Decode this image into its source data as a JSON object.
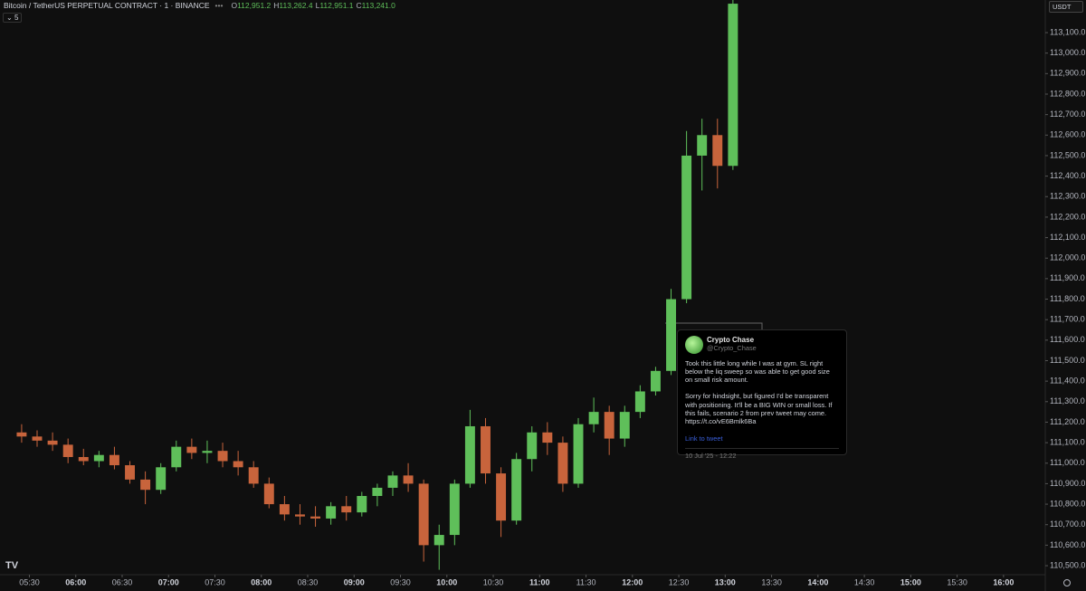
{
  "header": {
    "symbol": "Bitcoin / TetherUS PERPETUAL CONTRACT · 1 · BINANCE",
    "ohlc": [
      {
        "key": "O",
        "value": {
          "value": 112951.2,
          "label": "112,951.2"
        }
      },
      {
        "key": "H",
        "value": {
          "value": 113262.4,
          "label": "113,262.4"
        }
      },
      {
        "key": "L",
        "value": {
          "value": 112951.1,
          "label": "112,951.1"
        }
      },
      {
        "key": "C",
        "value": {
          "value": 113241.0,
          "label": "113,241.0"
        }
      }
    ],
    "indicator_count": 5,
    "currency": "USDT"
  },
  "tweet": {
    "name": "Crypto Chase",
    "handle": "@Crypto_Chase",
    "paragraphs": [
      "Took this little long while I was at gym. SL right below the liq sweep so was able to get good size on small risk amount.",
      "Sorry for hindsight, but figured I'd be transparent with positioning. It'll be a BIG WIN or small loss. If this fails, scenario 2 from prev tweet may come. https://t.co/vE6Bmlk6Ba"
    ],
    "link": "Link to tweet",
    "date": "10 Jul '25 - 12:22"
  },
  "chart_data": {
    "type": "candlestick",
    "up_color": "#5fbf5a",
    "down_color": "#c8643c",
    "x": [
      "05:20",
      "05:30",
      "05:40",
      "05:50",
      "06:00",
      "06:10",
      "06:20",
      "06:30",
      "06:40",
      "06:50",
      "07:00",
      "07:10",
      "07:20",
      "07:30",
      "07:40",
      "07:50",
      "08:00",
      "08:10",
      "08:20",
      "08:30",
      "08:40",
      "08:50",
      "09:00",
      "09:10",
      "09:20",
      "09:30",
      "09:40",
      "09:50",
      "10:00",
      "10:10",
      "10:20",
      "10:30",
      "10:40",
      "10:50",
      "11:00",
      "11:10",
      "11:20",
      "11:30",
      "11:40",
      "11:50",
      "12:00",
      "12:10",
      "12:20",
      "12:30",
      "12:40",
      "12:50",
      "13:00"
    ],
    "open": [
      111150,
      111130,
      111110,
      111090,
      111030,
      111010,
      111040,
      110990,
      110920,
      110870,
      110980,
      111080,
      111050,
      111060,
      111010,
      110980,
      110900,
      110800,
      110750,
      110740,
      110730,
      110790,
      110760,
      110840,
      110880,
      110940,
      110900,
      110600,
      110650,
      110900,
      111180,
      110950,
      110720,
      111020,
      111150,
      111100,
      110900,
      111190,
      111250,
      111120,
      111250,
      111350,
      111450,
      111800,
      112500,
      112600,
      112450
    ],
    "high": [
      111190,
      111160,
      111150,
      111120,
      111070,
      111060,
      111080,
      111010,
      110960,
      111000,
      111110,
      111120,
      111110,
      111100,
      111060,
      111010,
      110930,
      110840,
      110800,
      110790,
      110810,
      110840,
      110860,
      110900,
      110960,
      111000,
      110920,
      110700,
      110920,
      111260,
      111220,
      110980,
      111050,
      111180,
      111200,
      111130,
      111220,
      111320,
      111280,
      111280,
      111380,
      111470,
      111850,
      112620,
      112680,
      112680,
      113262
    ],
    "low": [
      111100,
      111080,
      111060,
      111000,
      110990,
      110980,
      110970,
      110900,
      110800,
      110850,
      110960,
      111020,
      111000,
      110980,
      110940,
      110880,
      110780,
      110720,
      110700,
      110690,
      110700,
      110720,
      110740,
      110790,
      110840,
      110860,
      110520,
      110480,
      110600,
      110880,
      110900,
      110640,
      110700,
      110960,
      111040,
      110860,
      110880,
      111150,
      111040,
      111080,
      111220,
      111330,
      111430,
      111780,
      112330,
      112340,
      112430
    ],
    "close": [
      111130,
      111110,
      111090,
      111030,
      111010,
      111040,
      110990,
      110920,
      110870,
      110980,
      111080,
      111050,
      111060,
      111010,
      110980,
      110900,
      110800,
      110750,
      110740,
      110730,
      110790,
      110760,
      110840,
      110880,
      110940,
      110900,
      110600,
      110650,
      110900,
      111180,
      110950,
      110720,
      111020,
      111150,
      111100,
      110900,
      111190,
      111250,
      111120,
      111250,
      111350,
      111450,
      111800,
      112500,
      112600,
      112450,
      113241
    ],
    "xlim": [
      "05:11",
      "16:27"
    ],
    "xticks": [
      "05:30",
      "06:00",
      "06:30",
      "07:00",
      "07:30",
      "08:00",
      "08:30",
      "09:00",
      "09:30",
      "10:00",
      "10:30",
      "11:00",
      "11:30",
      "12:00",
      "12:30",
      "13:00",
      "13:30",
      "14:00",
      "14:30",
      "15:00",
      "15:30",
      "16:00"
    ],
    "ylim": [
      110456,
      113259
    ],
    "yticks": [
      {
        "value": 110500,
        "label": "110,500.0"
      },
      {
        "value": 110600,
        "label": "110,600.0"
      },
      {
        "value": 110700,
        "label": "110,700.0"
      },
      {
        "value": 110800,
        "label": "110,800.0"
      },
      {
        "value": 110900,
        "label": "110,900.0"
      },
      {
        "value": 111000,
        "label": "111,000.0"
      },
      {
        "value": 111100,
        "label": "111,100.0"
      },
      {
        "value": 111200,
        "label": "111,200.0"
      },
      {
        "value": 111300,
        "label": "111,300.0"
      },
      {
        "value": 111400,
        "label": "111,400.0"
      },
      {
        "value": 111500,
        "label": "111,500.0"
      },
      {
        "value": 111600,
        "label": "111,600.0"
      },
      {
        "value": 111700,
        "label": "111,700.0"
      },
      {
        "value": 111800,
        "label": "111,800.0"
      },
      {
        "value": 111900,
        "label": "111,900.0"
      },
      {
        "value": 112000,
        "label": "112,000.0"
      },
      {
        "value": 112100,
        "label": "112,100.0"
      },
      {
        "value": 112200,
        "label": "112,200.0"
      },
      {
        "value": 112300,
        "label": "112,300.0"
      },
      {
        "value": 112400,
        "label": "112,400.0"
      },
      {
        "value": 112500,
        "label": "112,500.0"
      },
      {
        "value": 112600,
        "label": "112,600.0"
      },
      {
        "value": 112700,
        "label": "112,700.0"
      },
      {
        "value": 112800,
        "label": "112,800.0"
      },
      {
        "value": 112900,
        "label": "112,900.0"
      },
      {
        "value": 113000,
        "label": "113,000.0"
      },
      {
        "value": 113100,
        "label": "113,100.0"
      }
    ]
  }
}
